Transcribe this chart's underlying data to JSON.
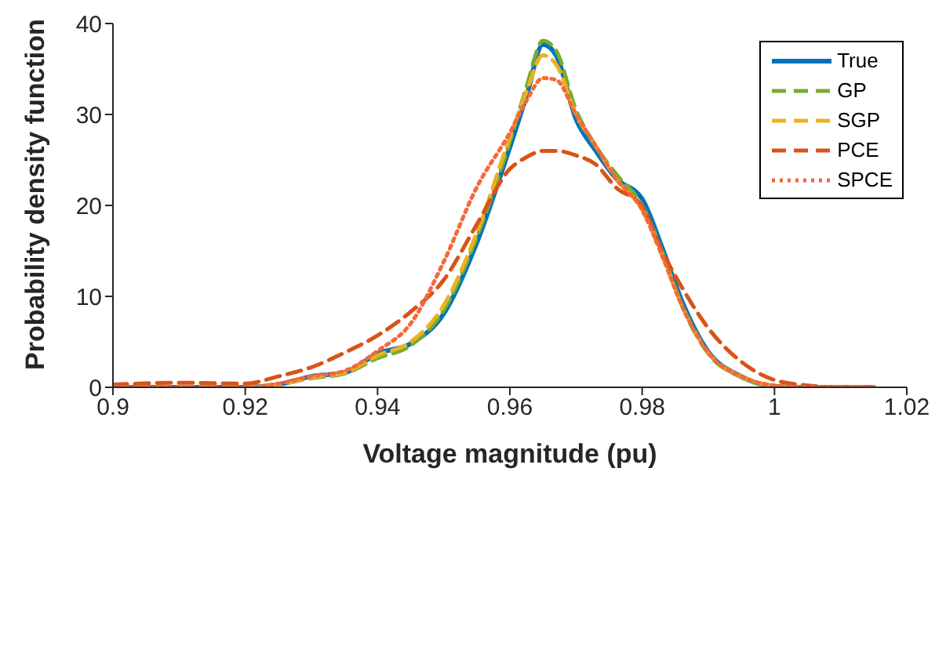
{
  "chart_data": {
    "type": "line",
    "xlabel": "Voltage magnitude (pu)",
    "ylabel": "Probability density function",
    "x": [
      0.9,
      0.91,
      0.92,
      0.925,
      0.93,
      0.935,
      0.94,
      0.945,
      0.95,
      0.955,
      0.96,
      0.9625,
      0.965,
      0.967,
      0.97,
      0.973,
      0.976,
      0.98,
      0.983,
      0.986,
      0.99,
      0.995,
      1.0,
      1.005,
      1.01,
      1.015
    ],
    "series": [
      {
        "name": "True",
        "color": "#0072bd",
        "line_style": "solid",
        "values": [
          0,
          0,
          0,
          0.3,
          1.2,
          1.6,
          3.7,
          4.8,
          8.1,
          15.9,
          26.4,
          32,
          37.7,
          36.5,
          29.5,
          26,
          23,
          20.7,
          15.4,
          9.5,
          3.9,
          1.2,
          0.1,
          0,
          0,
          0
        ]
      },
      {
        "name": "GP",
        "color": "#77ac30",
        "line_style": "dashed",
        "values": [
          0,
          0,
          0,
          0.3,
          1,
          1.5,
          3.2,
          4.6,
          8.5,
          16.5,
          27,
          33,
          38.1,
          37,
          30.5,
          26.5,
          23.5,
          20,
          15,
          9,
          3.7,
          1.1,
          0.1,
          0,
          0,
          0
        ]
      },
      {
        "name": "SGP",
        "color": "#edb120",
        "line_style": "dashed",
        "values": [
          0,
          0,
          0,
          0.3,
          1.1,
          1.6,
          3.5,
          5,
          9,
          17,
          27.5,
          32.5,
          36.5,
          35.5,
          30,
          26.5,
          23,
          19.5,
          14.5,
          9,
          3.8,
          1.2,
          0.2,
          0,
          0,
          0
        ]
      },
      {
        "name": "PCE",
        "color": "#d95319",
        "line_style": "dashed",
        "values": [
          0.3,
          0.5,
          0.4,
          1.2,
          2.2,
          3.8,
          5.7,
          8.3,
          11.8,
          17.9,
          24,
          25.3,
          26,
          26,
          25.5,
          24.5,
          22,
          19.9,
          15,
          11,
          6.5,
          2.8,
          0.8,
          0.2,
          0,
          0
        ]
      },
      {
        "name": "SPCE",
        "color": "#f5683a",
        "line_style": "dotted",
        "values": [
          0,
          0,
          0,
          0.4,
          1.2,
          1.8,
          4,
          7,
          13.8,
          22,
          28,
          31.5,
          34,
          33.8,
          30,
          26.5,
          23,
          19.5,
          14.5,
          9,
          3.8,
          1.2,
          0.2,
          0,
          0,
          0
        ]
      }
    ],
    "xlim": [
      0.9,
      1.02
    ],
    "xticks": [
      0.9,
      0.92,
      0.94,
      0.96,
      0.98,
      1,
      1.02
    ],
    "ylim": [
      0,
      40
    ],
    "yticks": [
      0,
      10,
      20,
      30,
      40
    ],
    "grid": false,
    "legend": "top right",
    "marker": "none"
  }
}
